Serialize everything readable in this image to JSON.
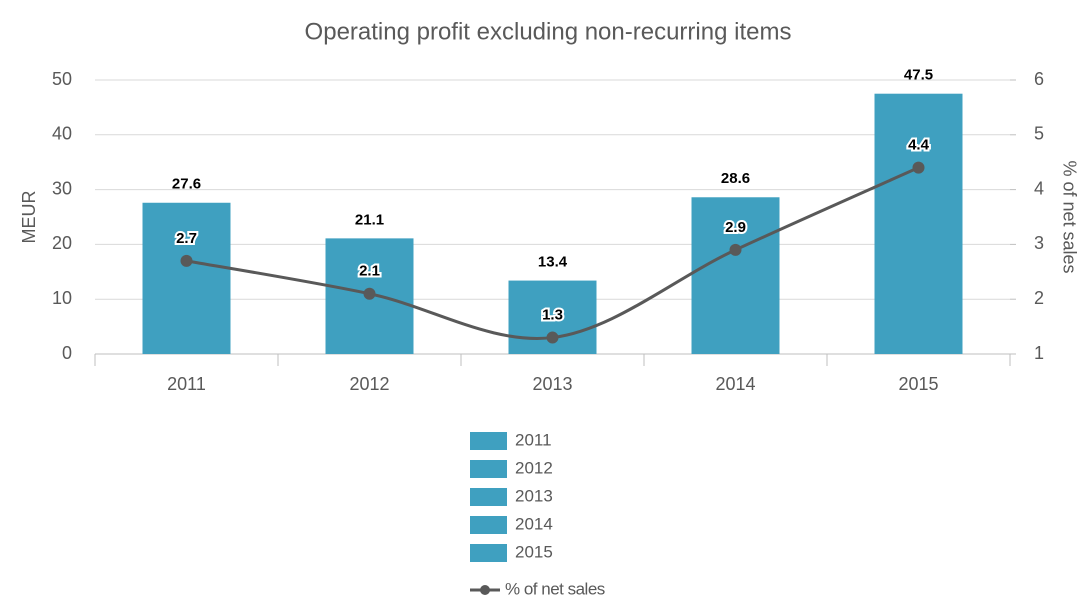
{
  "chart_data": {
    "type": "bar",
    "title": "Operating profit excluding non-recurring items",
    "categories": [
      "2011",
      "2012",
      "2013",
      "2014",
      "2015"
    ],
    "series": [
      {
        "type": "bar",
        "color": "#3fa0c0",
        "values": [
          27.6,
          21.1,
          13.4,
          28.6,
          47.5
        ]
      },
      {
        "type": "line",
        "name": "% of net sales",
        "color": "#595959",
        "axis": "y2",
        "values": [
          2.7,
          2.1,
          1.3,
          2.9,
          4.4
        ]
      }
    ],
    "ylabel": "MEUR",
    "y2label": "% of net sales",
    "ylim": [
      0,
      50
    ],
    "yticks": [
      0,
      10,
      20,
      30,
      40,
      50
    ],
    "y2lim": [
      1,
      6
    ],
    "y2ticks": [
      1,
      2,
      3,
      4,
      5,
      6
    ],
    "grid": true,
    "legend": "bottom"
  }
}
